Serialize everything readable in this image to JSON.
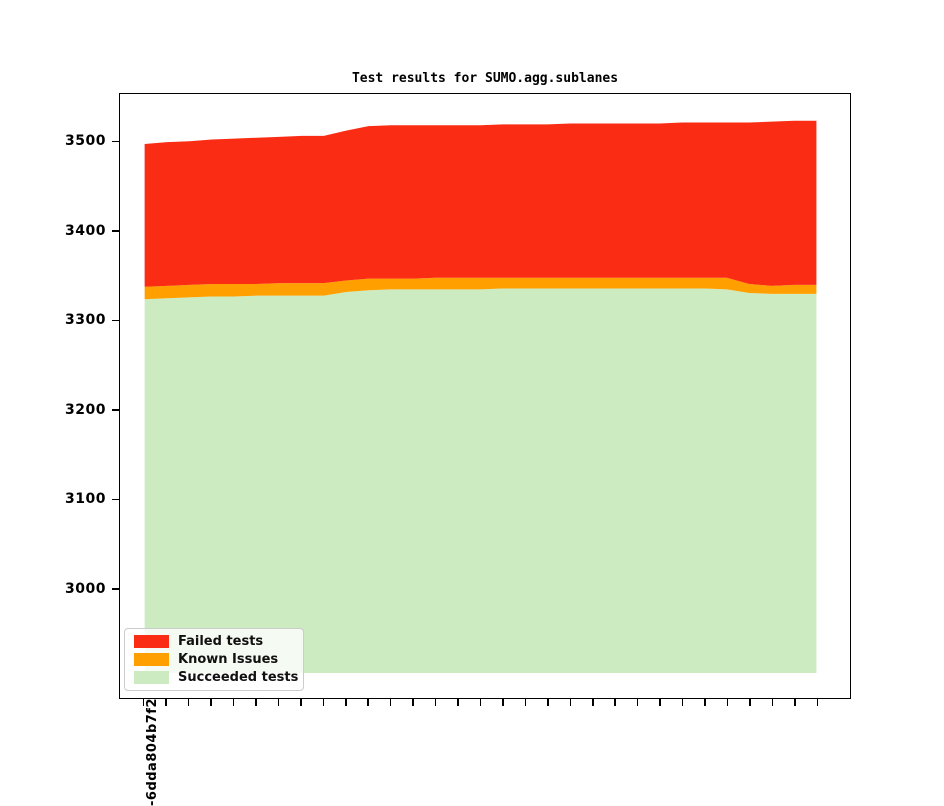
{
  "figure": {
    "title": "Test results for SUMO.agg.sublanes"
  },
  "chart_data": {
    "type": "area",
    "stacked": true,
    "title": "Test results for SUMO.agg.sublanes",
    "legend": {
      "position": "lower-left",
      "entries": [
        {
          "label": "Failed tests",
          "color": "#fb2c14"
        },
        {
          "label": "Known Issues",
          "color": "#ffa000"
        },
        {
          "label": "Succeeded tests",
          "color": "#cdebc1"
        }
      ]
    },
    "x_axis": {
      "tick_count": 31,
      "first_tick_label": "-6dda804b7f2",
      "xlim_index": [
        -1.1,
        31.5
      ]
    },
    "y_axis": {
      "ticks": [
        3500,
        3400,
        3300,
        3200,
        3100,
        3000
      ],
      "lim": [
        2877,
        3554
      ]
    },
    "area_bottom_baseline": 2905,
    "boundaries": {
      "succeeded_top": [
        3324,
        3325,
        3326,
        3327,
        3327,
        3328,
        3328,
        3328,
        3328,
        3332,
        3334,
        3335,
        3335,
        3335,
        3335,
        3335,
        3336,
        3336,
        3336,
        3336,
        3336,
        3336,
        3336,
        3336,
        3336,
        3336,
        3335,
        3331,
        3330,
        3330,
        3330
      ],
      "known_issues_top": [
        3338,
        3339,
        3340,
        3341,
        3341,
        3341,
        3342,
        3342,
        3342,
        3345,
        3347,
        3347,
        3347,
        3348,
        3348,
        3348,
        3348,
        3348,
        3348,
        3348,
        3348,
        3348,
        3348,
        3348,
        3348,
        3348,
        3348,
        3341,
        3339,
        3340,
        3340
      ],
      "failed_top": [
        3498,
        3500,
        3501,
        3503,
        3504,
        3505,
        3506,
        3507,
        3507,
        3513,
        3518,
        3519,
        3519,
        3519,
        3519,
        3519,
        3520,
        3520,
        3520,
        3521,
        3521,
        3521,
        3521,
        3521,
        3522,
        3522,
        3522,
        3522,
        3523,
        3524,
        3524
      ]
    },
    "series": [
      {
        "name": "Failed tests",
        "color": "#fb2c14",
        "values": [
          160,
          161,
          161,
          162,
          163,
          164,
          164,
          165,
          165,
          168,
          171,
          172,
          172,
          171,
          171,
          171,
          172,
          172,
          172,
          173,
          173,
          173,
          173,
          173,
          174,
          174,
          174,
          181,
          184,
          184,
          184
        ]
      },
      {
        "name": "Known Issues",
        "color": "#ffa000",
        "values": [
          14,
          14,
          14,
          14,
          14,
          13,
          14,
          14,
          14,
          13,
          13,
          12,
          12,
          13,
          13,
          13,
          12,
          12,
          12,
          12,
          12,
          12,
          12,
          12,
          12,
          12,
          13,
          10,
          9,
          10,
          10
        ]
      },
      {
        "name": "Succeeded tests",
        "color": "#cdebc1",
        "values": [
          3324,
          3325,
          3326,
          3327,
          3327,
          3328,
          3328,
          3328,
          3328,
          3332,
          3334,
          3335,
          3335,
          3335,
          3335,
          3335,
          3336,
          3336,
          3336,
          3336,
          3336,
          3336,
          3336,
          3336,
          3336,
          3336,
          3335,
          3331,
          3330,
          3330,
          3330
        ]
      }
    ]
  }
}
